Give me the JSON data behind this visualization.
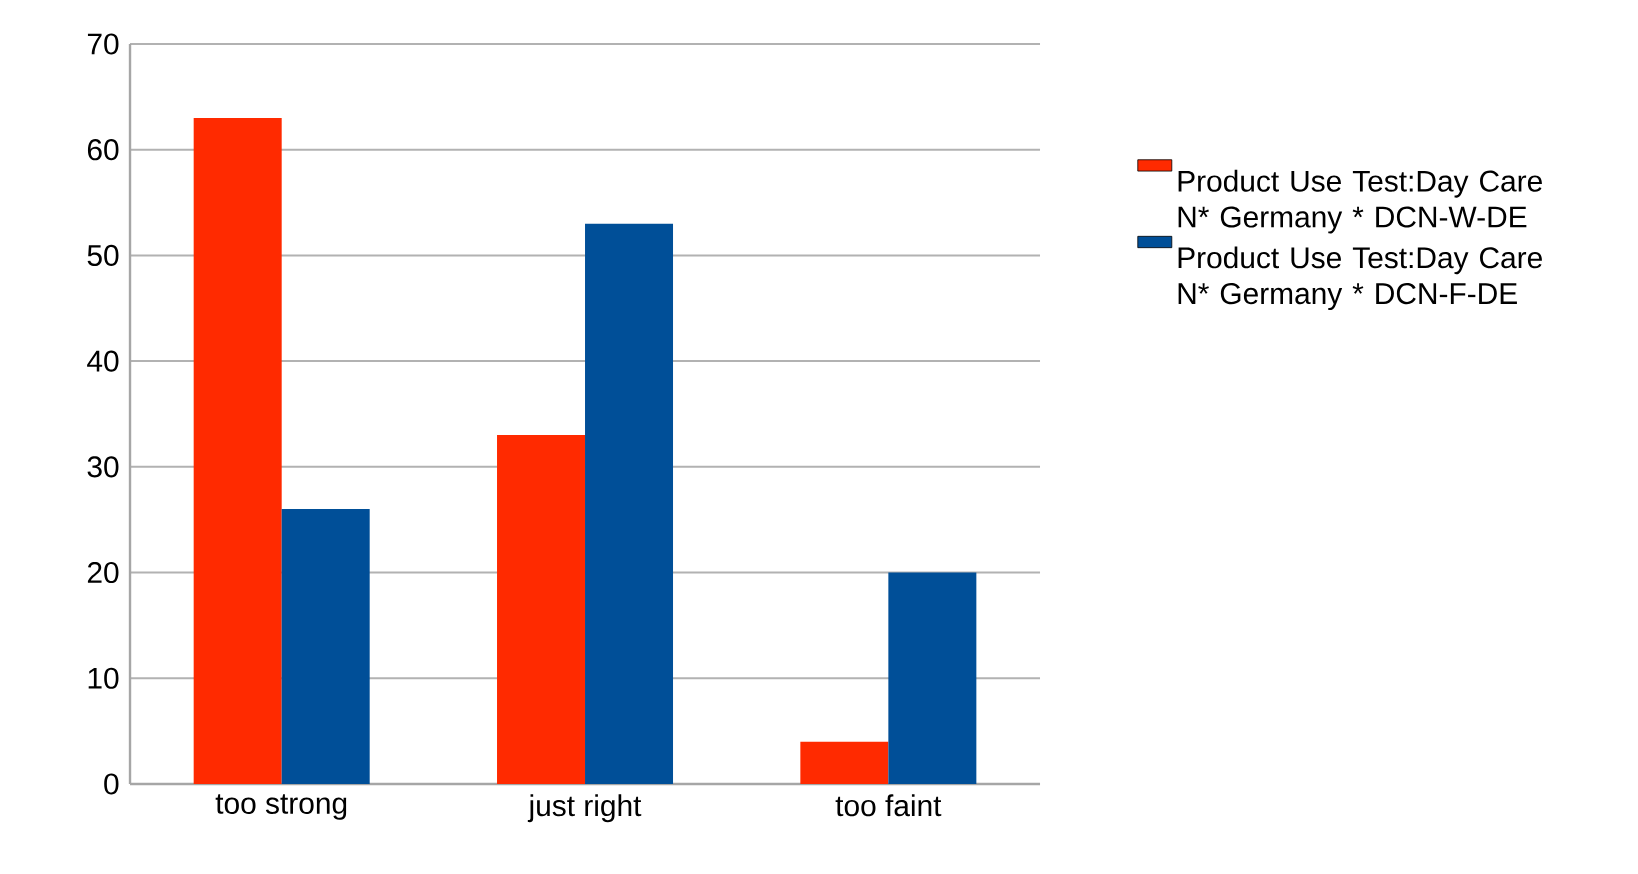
{
  "chart_data": {
    "type": "bar",
    "categories": [
      "too strong",
      "just right",
      "too faint"
    ],
    "series": [
      {
        "name": "Product Use Test:Day Care N* Germany * DCN-W-DE",
        "color": "#ff2a00",
        "values": [
          63,
          33,
          4
        ]
      },
      {
        "name": "Product Use Test:Day Care N* Germany * DCN-F-DE",
        "color": "#004f98",
        "values": [
          26,
          53,
          20
        ]
      }
    ],
    "ylim": [
      0,
      70
    ],
    "yticks": [
      0,
      10,
      20,
      30,
      40,
      50,
      60,
      70
    ],
    "grid": "y",
    "legend": "right"
  }
}
